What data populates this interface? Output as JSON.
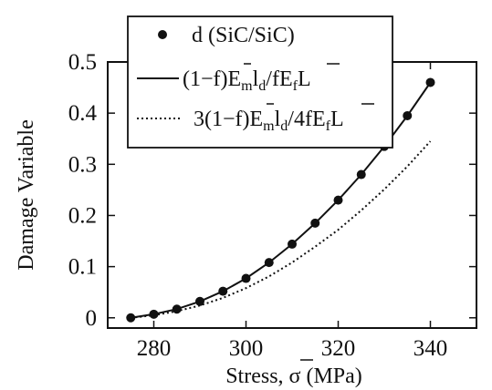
{
  "chart_data": {
    "type": "line",
    "xlabel_main": "Stress, ",
    "xlabel_sigma": "σ",
    "xlabel_unit": " (MPa)",
    "ylabel": "Damage Variable",
    "xlim": [
      270,
      350
    ],
    "ylim": [
      -0.02,
      0.5
    ],
    "x_ticks": [
      280,
      300,
      320,
      340
    ],
    "y_ticks": [
      0,
      0.1,
      0.2,
      0.3,
      0.4,
      0.5
    ],
    "x_tick_labels": [
      "280",
      "300",
      "320",
      "340"
    ],
    "y_tick_labels": [
      "0",
      "0.1",
      "0.2",
      "0.3",
      "0.4",
      "0.5"
    ],
    "grid": false,
    "legend_position": "top-right",
    "series": [
      {
        "name": "d (SiC/SiC)",
        "style": "markers",
        "color": "#111111",
        "x": [
          275,
          280,
          285,
          290,
          295,
          300,
          305,
          310,
          315,
          320,
          325,
          330,
          335,
          340
        ],
        "y": [
          0.0,
          0.007,
          0.017,
          0.032,
          0.052,
          0.077,
          0.108,
          0.144,
          0.185,
          0.23,
          0.28,
          0.335,
          0.395,
          0.46
        ]
      },
      {
        "name_parts": [
          "(1−f)E",
          "m",
          "l",
          "d",
          "/fE",
          "f",
          "L"
        ],
        "style": "solid",
        "color": "#111111",
        "x": [
          275,
          280,
          285,
          290,
          295,
          300,
          305,
          310,
          315,
          320,
          325,
          330,
          335,
          340
        ],
        "y": [
          0.0,
          0.007,
          0.017,
          0.032,
          0.052,
          0.077,
          0.108,
          0.144,
          0.185,
          0.23,
          0.28,
          0.335,
          0.395,
          0.46
        ]
      },
      {
        "name_parts": [
          "3(1−f)E",
          "m",
          "l",
          "d",
          "/4fE",
          "f",
          "L"
        ],
        "style": "dotted",
        "color": "#111111",
        "x": [
          275,
          280,
          285,
          290,
          295,
          300,
          305,
          310,
          315,
          320,
          325,
          330,
          335,
          340
        ],
        "y": [
          0.0,
          0.005,
          0.013,
          0.024,
          0.039,
          0.058,
          0.081,
          0.108,
          0.139,
          0.172,
          0.21,
          0.251,
          0.296,
          0.345
        ]
      }
    ]
  }
}
